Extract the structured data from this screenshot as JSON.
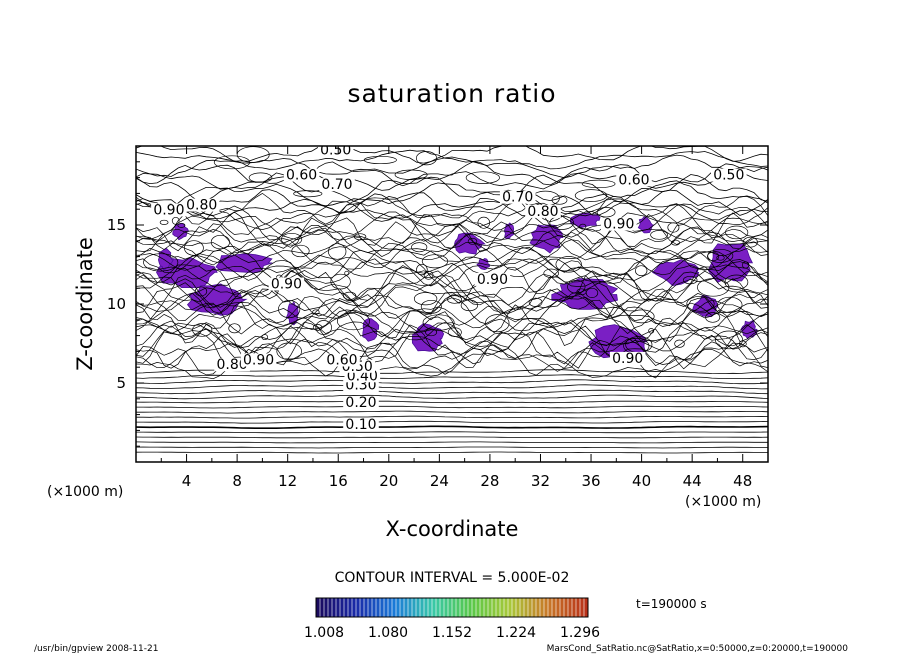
{
  "chart_data": {
    "type": "contour",
    "title": "saturation ratio",
    "xlabel": "X-coordinate",
    "ylabel": "Z-coordinate",
    "x_unit": "(×1000 m)",
    "y_unit": "(×1000 m)",
    "xlim": [
      0,
      50
    ],
    "ylim": [
      0,
      20
    ],
    "x_ticks": [
      4,
      8,
      12,
      16,
      20,
      24,
      28,
      32,
      36,
      40,
      44,
      48
    ],
    "y_ticks": [
      5,
      10,
      15
    ],
    "contour_interval_text": "CONTOUR INTERVAL = 5.000E-02",
    "contour_labels": [
      {
        "text": "0.10",
        "x": 17.8,
        "z": 2.2
      },
      {
        "text": "0.20",
        "x": 17.8,
        "z": 3.6
      },
      {
        "text": "0.30",
        "x": 17.8,
        "z": 4.7
      },
      {
        "text": "0.40",
        "x": 17.9,
        "z": 5.3
      },
      {
        "text": "0.50",
        "x": 17.5,
        "z": 5.9
      },
      {
        "text": "0.60",
        "x": 16.3,
        "z": 6.3
      },
      {
        "text": "0.80",
        "x": 7.6,
        "z": 6.0
      },
      {
        "text": "0.90",
        "x": 9.7,
        "z": 6.3
      },
      {
        "text": "0.90",
        "x": 38.9,
        "z": 6.4
      },
      {
        "text": "0.90",
        "x": 11.9,
        "z": 11.1
      },
      {
        "text": "0.90",
        "x": 28.2,
        "z": 11.4
      },
      {
        "text": "0.90",
        "x": 38.2,
        "z": 14.9
      },
      {
        "text": "0.90",
        "x": 2.6,
        "z": 15.8
      },
      {
        "text": "0.80",
        "x": 5.2,
        "z": 16.1
      },
      {
        "text": "0.80",
        "x": 32.2,
        "z": 15.7
      },
      {
        "text": "0.70",
        "x": 30.2,
        "z": 16.6
      },
      {
        "text": "0.70",
        "x": 15.9,
        "z": 17.4
      },
      {
        "text": "0.60",
        "x": 13.1,
        "z": 18.0
      },
      {
        "text": "0.60",
        "x": 39.4,
        "z": 17.7
      },
      {
        "text": "0.50",
        "x": 15.8,
        "z": 19.6
      },
      {
        "text": "0.50",
        "x": 46.9,
        "z": 18.0
      }
    ],
    "supersaturated_regions": [
      {
        "x": 4.0,
        "z": 12.0,
        "rx": 2.3,
        "rz": 1.0
      },
      {
        "x": 8.5,
        "z": 12.6,
        "rx": 2.2,
        "rz": 0.7
      },
      {
        "x": 6.3,
        "z": 10.3,
        "rx": 2.4,
        "rz": 1.0
      },
      {
        "x": 2.3,
        "z": 12.8,
        "rx": 0.6,
        "rz": 0.7
      },
      {
        "x": 3.5,
        "z": 14.6,
        "rx": 0.6,
        "rz": 0.5
      },
      {
        "x": 12.4,
        "z": 9.4,
        "rx": 0.5,
        "rz": 0.7
      },
      {
        "x": 18.5,
        "z": 8.4,
        "rx": 0.7,
        "rz": 0.7
      },
      {
        "x": 23.0,
        "z": 7.8,
        "rx": 1.4,
        "rz": 0.9
      },
      {
        "x": 26.2,
        "z": 13.8,
        "rx": 1.3,
        "rz": 0.7
      },
      {
        "x": 32.5,
        "z": 14.2,
        "rx": 1.3,
        "rz": 0.9
      },
      {
        "x": 35.5,
        "z": 15.3,
        "rx": 1.2,
        "rz": 0.5
      },
      {
        "x": 29.5,
        "z": 14.6,
        "rx": 0.4,
        "rz": 0.5
      },
      {
        "x": 35.5,
        "z": 10.6,
        "rx": 2.6,
        "rz": 1.0
      },
      {
        "x": 38.3,
        "z": 7.6,
        "rx": 2.5,
        "rz": 1.1
      },
      {
        "x": 42.8,
        "z": 12.0,
        "rx": 1.9,
        "rz": 0.8
      },
      {
        "x": 47.0,
        "z": 12.6,
        "rx": 1.8,
        "rz": 1.3
      },
      {
        "x": 45.0,
        "z": 9.8,
        "rx": 1.0,
        "rz": 0.7
      },
      {
        "x": 48.5,
        "z": 8.4,
        "rx": 0.6,
        "rz": 0.6
      },
      {
        "x": 40.3,
        "z": 15.0,
        "rx": 0.6,
        "rz": 0.5
      },
      {
        "x": 27.5,
        "z": 12.5,
        "rx": 0.5,
        "rz": 0.4
      }
    ],
    "colorbar": {
      "tick_labels": [
        "1.008",
        "1.080",
        "1.152",
        "1.224",
        "1.296"
      ],
      "colors": [
        "#1a0a5e",
        "#1a2aa8",
        "#1a7ad8",
        "#38c8a8",
        "#58c848",
        "#a8c838",
        "#c87828",
        "#b83018"
      ]
    },
    "time_label": "t=190000 s"
  },
  "footer": {
    "left": "/usr/bin/gpview  2008-11-21",
    "right": "MarsCond_SatRatio.nc@SatRatio,x=0:50000,z=0:20000,t=190000"
  },
  "colors": {
    "fill_purple": "#7a1fc4",
    "fill_edge": "#4a109a",
    "line": "#000000"
  }
}
